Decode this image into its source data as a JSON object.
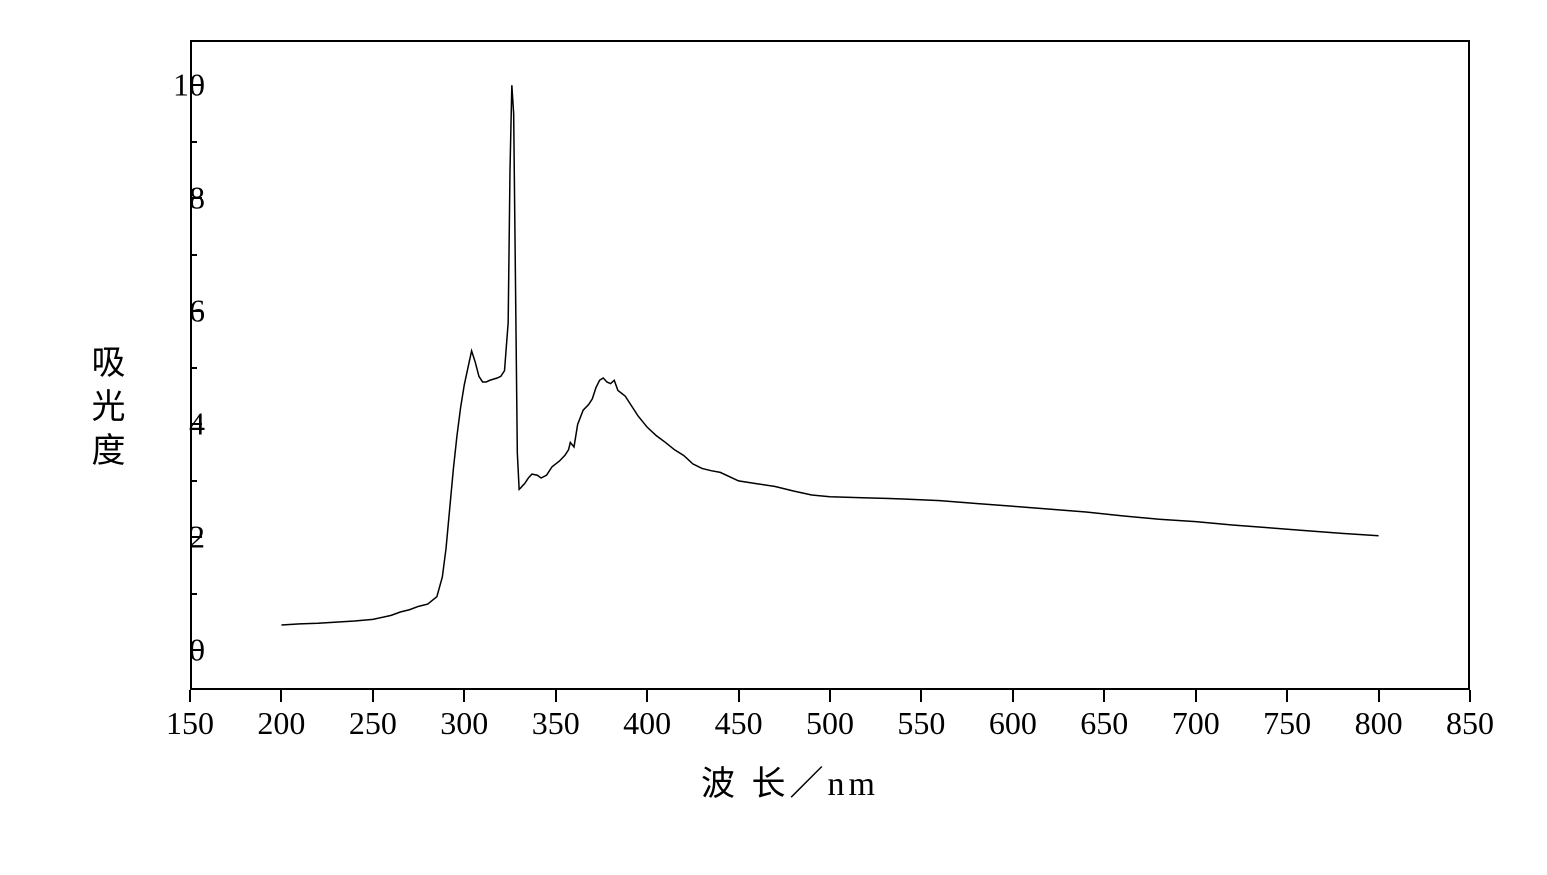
{
  "chart": {
    "type": "line",
    "background_color": "#ffffff",
    "border_color": "#000000",
    "line_color": "#000000",
    "line_width": 1.5,
    "xlabel": "波 长／nm",
    "ylabel": "吸光度",
    "label_fontsize": 34,
    "tick_fontsize": 32,
    "xlim": [
      150,
      850
    ],
    "ylim": [
      -0.7,
      10.8
    ],
    "xtick_major_step": 50,
    "xtick_major_start": 150,
    "xtick_major_end": 850,
    "ytick_major_step": 2,
    "ytick_major_start": 0,
    "ytick_major_end": 10,
    "ytick_minor_step": 1,
    "series": {
      "x": [
        200,
        210,
        220,
        230,
        240,
        250,
        260,
        265,
        270,
        275,
        280,
        285,
        288,
        290,
        292,
        294,
        296,
        298,
        300,
        302,
        304,
        306,
        308,
        310,
        312,
        314,
        316,
        318,
        320,
        322,
        324,
        325,
        326,
        327,
        328,
        329,
        330,
        331,
        332,
        333,
        335,
        337,
        340,
        342,
        345,
        348,
        350,
        352,
        355,
        357,
        358,
        360,
        362,
        365,
        368,
        370,
        372,
        374,
        376,
        378,
        380,
        382,
        384,
        386,
        388,
        390,
        395,
        400,
        405,
        410,
        415,
        420,
        425,
        430,
        435,
        440,
        450,
        460,
        470,
        480,
        490,
        500,
        520,
        540,
        560,
        580,
        600,
        620,
        640,
        660,
        680,
        700,
        720,
        740,
        760,
        780,
        800
      ],
      "y": [
        0.45,
        0.47,
        0.48,
        0.5,
        0.52,
        0.55,
        0.62,
        0.68,
        0.72,
        0.78,
        0.82,
        0.95,
        1.3,
        1.8,
        2.5,
        3.2,
        3.8,
        4.3,
        4.7,
        5.0,
        5.3,
        5.1,
        4.85,
        4.75,
        4.75,
        4.78,
        4.8,
        4.82,
        4.85,
        4.95,
        5.8,
        8.5,
        10.0,
        9.5,
        6.5,
        3.5,
        2.85,
        2.88,
        2.92,
        2.95,
        3.05,
        3.12,
        3.1,
        3.05,
        3.1,
        3.25,
        3.3,
        3.35,
        3.45,
        3.55,
        3.68,
        3.6,
        4.0,
        4.25,
        4.35,
        4.45,
        4.65,
        4.78,
        4.82,
        4.75,
        4.72,
        4.78,
        4.6,
        4.55,
        4.5,
        4.4,
        4.15,
        3.95,
        3.8,
        3.68,
        3.55,
        3.45,
        3.3,
        3.22,
        3.18,
        3.15,
        3.0,
        2.95,
        2.9,
        2.82,
        2.75,
        2.72,
        2.7,
        2.68,
        2.65,
        2.6,
        2.55,
        2.5,
        2.45,
        2.38,
        2.32,
        2.28,
        2.22,
        2.17,
        2.12,
        2.07,
        2.03
      ]
    }
  }
}
